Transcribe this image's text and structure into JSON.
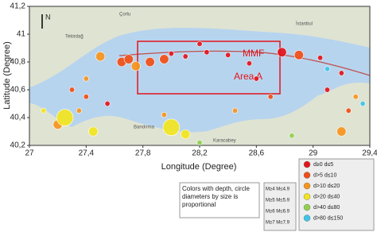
{
  "chart_data": {
    "type": "scatter",
    "xlabel": "Longitude (Degree)",
    "ylabel": "Latitude (Degree)",
    "xlim": [
      27,
      29.4
    ],
    "ylim": [
      40.2,
      41.2
    ],
    "xticks": [
      27,
      {
        "value": 27.4,
        "label": "27,4"
      },
      {
        "value": 27.8,
        "label": "27,8"
      },
      {
        "value": 28.2,
        "label": "28,2"
      },
      {
        "value": 28.6,
        "label": "28,6"
      },
      29,
      {
        "value": 29.4,
        "label": "29,4"
      }
    ],
    "yticks": [
      {
        "value": 40.2,
        "label": "40,2"
      },
      {
        "value": 40.4,
        "label": "40,4"
      },
      {
        "value": 40.6,
        "label": "40,6"
      },
      {
        "value": 40.8,
        "label": "40,8"
      },
      41,
      {
        "value": 41.2,
        "label": "41,2"
      }
    ],
    "series": [
      {
        "name": "d≥0 d≤5",
        "color": "#e3141b",
        "x": [
          28.0,
          28.1,
          28.25,
          28.4,
          28.55,
          28.78,
          29.05,
          29.2,
          28.6,
          27.55,
          29.1,
          28.2
        ],
        "values": [
          40.86,
          40.84,
          40.87,
          40.85,
          40.79,
          40.87,
          40.83,
          40.72,
          40.68,
          40.5,
          40.6,
          40.93
        ],
        "sizes": [
          4.5,
          4.5,
          4.5,
          4.5,
          4.5,
          5.2,
          4.5,
          4.5,
          4.5,
          4.5,
          4.5,
          4.5
        ]
      },
      {
        "name": "d>5 d≤10",
        "color": "#f04e16",
        "x": [
          27.65,
          27.7,
          27.85,
          27.95,
          28.9,
          27.3,
          27.4,
          28.7,
          29.25
        ],
        "values": [
          40.8,
          40.82,
          40.8,
          40.82,
          40.85,
          40.6,
          40.55,
          40.55,
          40.45
        ],
        "sizes": [
          5.2,
          5.2,
          5.2,
          5.2,
          5.2,
          4.5,
          4.5,
          4.5,
          4.5
        ]
      },
      {
        "name": "d>10 d≤20",
        "color": "#f7941d",
        "x": [
          27.5,
          27.75,
          27.2,
          27.35,
          27.95,
          28.45,
          29.2,
          27.4,
          29.3
        ],
        "values": [
          40.84,
          40.77,
          40.35,
          40.45,
          40.42,
          40.45,
          40.3,
          40.68,
          40.55
        ],
        "sizes": [
          5.2,
          5.2,
          5.2,
          4.5,
          4.5,
          4.5,
          5.2,
          4.5,
          4.5
        ]
      },
      {
        "name": "d>20 d≤40",
        "color": "#f2e51f",
        "x": [
          27.25,
          27.45,
          28.0,
          28.1,
          27.1
        ],
        "values": [
          40.4,
          40.3,
          40.33,
          40.28,
          40.45
        ],
        "sizes": [
          6.5,
          5.2,
          6.5,
          5.2,
          4.5
        ]
      },
      {
        "name": "d>40 d≤80",
        "color": "#8fd14f",
        "x": [
          28.2,
          28.85
        ],
        "values": [
          40.22,
          40.27
        ],
        "sizes": [
          4.5,
          4.5
        ]
      },
      {
        "name": "d>80 d≤150",
        "color": "#3ec6e8",
        "x": [
          29.1,
          29.35
        ],
        "values": [
          40.75,
          40.5
        ],
        "sizes": [
          4.5,
          4.5
        ]
      }
    ],
    "size_legend": [
      "M≥4  M≤4.9",
      "M≥5  M≤5.9",
      "M≥6  M≤6.9",
      "M≥7  M≤7.9"
    ],
    "note": "Colors with depth, circle diameters by size is proportional",
    "annotations": [
      "MMF",
      "Area A"
    ],
    "north": "N",
    "places": [
      "Tekirdağ",
      "Çorlu",
      "İstanbul",
      "Bandırma",
      "Karacabey"
    ]
  }
}
